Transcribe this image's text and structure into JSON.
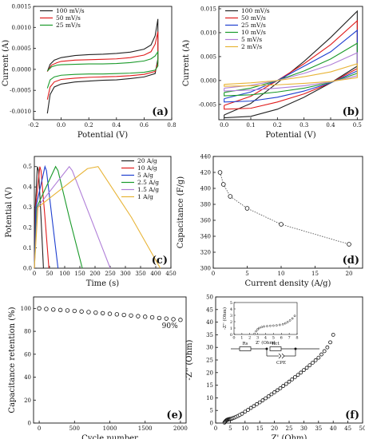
{
  "chart_data": [
    {
      "panel": "(a)",
      "type": "line",
      "xlabel": "Potential (V)",
      "ylabel": "Current (A)",
      "xlim": [
        -0.2,
        0.8
      ],
      "ylim": [
        -0.0012,
        0.0015
      ],
      "xticks": [
        "-0.2",
        "0.0",
        "0.2",
        "0.4",
        "0.6",
        "0.8"
      ],
      "yticks": [
        "-0.0010",
        "-0.0005",
        "0.0000",
        "0.0005",
        "0.0010",
        "0.0015"
      ],
      "legend_position": "top-left",
      "series": [
        {
          "name": "100 mV/s",
          "color": "#222222",
          "x": [
            -0.1,
            -0.08,
            -0.05,
            0.0,
            0.1,
            0.2,
            0.3,
            0.4,
            0.5,
            0.6,
            0.65,
            0.68,
            0.7,
            0.7,
            0.68,
            0.6,
            0.5,
            0.4,
            0.3,
            0.2,
            0.1,
            0.0,
            -0.05,
            -0.08,
            -0.1
          ],
          "y": [
            -5e-05,
            0.00012,
            0.00022,
            0.00028,
            0.00033,
            0.00035,
            0.00036,
            0.00038,
            0.00041,
            0.00048,
            0.00058,
            0.0008,
            0.0012,
            0.00025,
            -0.0001,
            -0.00018,
            -0.00022,
            -0.00025,
            -0.00026,
            -0.00028,
            -0.0003,
            -0.00035,
            -0.00042,
            -0.0006,
            -0.00105
          ]
        },
        {
          "name": "50 mV/s",
          "color": "#e01b1b",
          "x": [
            -0.1,
            -0.07,
            -0.03,
            0.0,
            0.1,
            0.2,
            0.3,
            0.4,
            0.5,
            0.6,
            0.65,
            0.68,
            0.7,
            0.7,
            0.68,
            0.6,
            0.5,
            0.4,
            0.3,
            0.2,
            0.1,
            0.0,
            -0.05,
            -0.08,
            -0.1
          ],
          "y": [
            -5e-05,
            0.0001,
            0.00016,
            0.00019,
            0.00022,
            0.00023,
            0.00024,
            0.00025,
            0.00028,
            0.00034,
            0.00042,
            0.0006,
            0.0009,
            0.00015,
            -5e-05,
            -0.00012,
            -0.00015,
            -0.00017,
            -0.00018,
            -0.00019,
            -0.00021,
            -0.00024,
            -0.0003,
            -0.00042,
            -0.00072
          ]
        },
        {
          "name": "25 mV/s",
          "color": "#1a9a2a",
          "x": [
            -0.1,
            -0.07,
            -0.03,
            0.0,
            0.1,
            0.2,
            0.3,
            0.4,
            0.5,
            0.6,
            0.65,
            0.68,
            0.7,
            0.7,
            0.68,
            0.6,
            0.5,
            0.4,
            0.3,
            0.2,
            0.1,
            0.0,
            -0.05,
            -0.08,
            -0.1
          ],
          "y": [
            -4e-05,
            6e-05,
            0.0001,
            0.00011,
            0.00012,
            0.00013,
            0.00013,
            0.00014,
            0.00016,
            0.0002,
            0.00025,
            0.00032,
            0.00042,
            8e-05,
            -2e-05,
            -7e-05,
            -9e-05,
            -0.0001,
            -0.00011,
            -0.00011,
            -0.00012,
            -0.00014,
            -0.00018,
            -0.00025,
            -0.00045
          ]
        }
      ]
    },
    {
      "panel": "(b)",
      "type": "line",
      "xlabel": "Potential (V)",
      "ylabel": "Current (A)",
      "xlim": [
        -0.02,
        0.52
      ],
      "ylim": [
        -0.0082,
        0.0155
      ],
      "xticks": [
        "0.0",
        "0.1",
        "0.2",
        "0.3",
        "0.4",
        "0.5"
      ],
      "yticks": [
        "-0.005",
        "0.000",
        "0.005",
        "0.010",
        "0.015"
      ],
      "legend_position": "top-left",
      "series": [
        {
          "name": "100 mV/s",
          "color": "#222222",
          "x": [
            0.0,
            0.1,
            0.2,
            0.3,
            0.4,
            0.5,
            0.5,
            0.4,
            0.3,
            0.2,
            0.1,
            0.0,
            0.0
          ],
          "y": [
            -0.0072,
            -0.0048,
            -0.0005,
            0.004,
            0.009,
            0.0145,
            0.003,
            -0.0005,
            -0.0035,
            -0.006,
            -0.0075,
            -0.0078,
            -0.0072
          ]
        },
        {
          "name": "50 mV/s",
          "color": "#e01b1b",
          "x": [
            0.0,
            0.1,
            0.2,
            0.3,
            0.4,
            0.5,
            0.5,
            0.4,
            0.3,
            0.2,
            0.1,
            0.0,
            0.0
          ],
          "y": [
            -0.0052,
            -0.0033,
            0.0,
            0.0035,
            0.0075,
            0.0125,
            0.0025,
            -0.0005,
            -0.0028,
            -0.0045,
            -0.0058,
            -0.006,
            -0.0052
          ]
        },
        {
          "name": "25 mV/s",
          "color": "#1e3fd0",
          "x": [
            0.0,
            0.1,
            0.2,
            0.3,
            0.4,
            0.5,
            0.5,
            0.4,
            0.3,
            0.2,
            0.1,
            0.0,
            0.0
          ],
          "y": [
            -0.0038,
            -0.0024,
            0.0,
            0.003,
            0.006,
            0.0105,
            0.002,
            -0.0005,
            -0.0022,
            -0.0035,
            -0.0043,
            -0.0045,
            -0.0038
          ]
        },
        {
          "name": "10 mV/s",
          "color": "#1a9a2a",
          "x": [
            0.0,
            0.1,
            0.2,
            0.3,
            0.4,
            0.5,
            0.5,
            0.4,
            0.3,
            0.2,
            0.1,
            0.0,
            0.0
          ],
          "y": [
            -0.0025,
            -0.0016,
            0.0,
            0.002,
            0.0045,
            0.0078,
            0.0015,
            -0.0004,
            -0.0016,
            -0.0024,
            -0.003,
            -0.0032,
            -0.0025
          ]
        },
        {
          "name": "5 mV/s",
          "color": "#b07fd8",
          "x": [
            0.0,
            0.1,
            0.2,
            0.3,
            0.4,
            0.5,
            0.5,
            0.4,
            0.3,
            0.2,
            0.1,
            0.0,
            0.0
          ],
          "y": [
            -0.0016,
            -0.001,
            0.0,
            0.0015,
            0.0033,
            0.0058,
            0.001,
            -0.0003,
            -0.0011,
            -0.0016,
            -0.002,
            -0.0022,
            -0.0016
          ]
        },
        {
          "name": "2 mV/s",
          "color": "#e8b437",
          "x": [
            0.0,
            0.1,
            0.2,
            0.3,
            0.4,
            0.5,
            0.5,
            0.4,
            0.3,
            0.2,
            0.1,
            0.0,
            0.0
          ],
          "y": [
            -0.0008,
            -0.0005,
            0.0,
            0.0008,
            0.0018,
            0.0035,
            0.0006,
            -0.0002,
            -0.0006,
            -0.0009,
            -0.0011,
            -0.0012,
            -0.0008
          ]
        }
      ]
    },
    {
      "panel": "(c)",
      "type": "line",
      "xlabel": "Time (s)",
      "ylabel": "Potential (V)",
      "xlim": [
        0,
        450
      ],
      "ylim": [
        0,
        0.55
      ],
      "xticks": [
        "0",
        "50",
        "100",
        "150",
        "200",
        "250",
        "300",
        "350",
        "400",
        "450"
      ],
      "yticks": [
        "0.0",
        "0.1",
        "0.2",
        "0.3",
        "0.4",
        "0.5"
      ],
      "legend_position": "top-right",
      "series": [
        {
          "name": "20 A/g",
          "color": "#222222",
          "x": [
            0,
            3,
            10,
            14,
            22,
            30
          ],
          "y": [
            0,
            0.3,
            0.5,
            0.48,
            0.25,
            0
          ]
        },
        {
          "name": "10 A/g",
          "color": "#e01b1b",
          "x": [
            0,
            4,
            18,
            22,
            35,
            48
          ],
          "y": [
            0,
            0.3,
            0.5,
            0.48,
            0.25,
            0
          ]
        },
        {
          "name": "5 A/g",
          "color": "#1e3fd0",
          "x": [
            0,
            5,
            35,
            40,
            58,
            78
          ],
          "y": [
            0,
            0.3,
            0.5,
            0.48,
            0.25,
            0
          ]
        },
        {
          "name": "2.5 A/g",
          "color": "#1a9a2a",
          "x": [
            0,
            8,
            70,
            78,
            115,
            158
          ],
          "y": [
            0,
            0.3,
            0.5,
            0.48,
            0.25,
            0
          ]
        },
        {
          "name": "1.5 A/g",
          "color": "#b07fd8",
          "x": [
            0,
            10,
            115,
            125,
            185,
            250
          ],
          "y": [
            0,
            0.3,
            0.5,
            0.48,
            0.25,
            0
          ]
        },
        {
          "name": "1 A/g",
          "color": "#e8b437",
          "x": [
            0,
            12,
            175,
            210,
            320,
            415
          ],
          "y": [
            0,
            0.3,
            0.49,
            0.5,
            0.25,
            0
          ]
        }
      ]
    },
    {
      "panel": "(d)",
      "type": "scatter",
      "xlabel": "Current density (A/g)",
      "ylabel": "Capacitance (F/g)",
      "xlim": [
        0,
        22
      ],
      "ylim": [
        300,
        440
      ],
      "xticks": [
        "0",
        "5",
        "10",
        "15",
        "20"
      ],
      "yticks": [
        "300",
        "320",
        "340",
        "360",
        "380",
        "400",
        "420",
        "440"
      ],
      "x": [
        1,
        1.5,
        2.5,
        5,
        10,
        20
      ],
      "y": [
        420,
        405,
        390,
        375,
        355,
        330
      ]
    },
    {
      "panel": "(e)",
      "type": "scatter",
      "xlabel": "Cycle number",
      "ylabel": "Capacitance retention (%)",
      "xlim": [
        -80,
        2080
      ],
      "ylim": [
        0,
        110
      ],
      "xticks": [
        "0",
        "500",
        "1000",
        "1500",
        "2000"
      ],
      "yticks": [
        "0",
        "20",
        "40",
        "60",
        "80",
        "100"
      ],
      "annotation": "90%",
      "x": [
        0,
        100,
        200,
        300,
        400,
        500,
        600,
        700,
        800,
        900,
        1000,
        1100,
        1200,
        1300,
        1400,
        1500,
        1600,
        1700,
        1800,
        1900,
        2000
      ],
      "y": [
        100,
        99.5,
        99,
        98.6,
        98.2,
        97.8,
        97.3,
        96.8,
        96.3,
        95.8,
        95.3,
        94.8,
        94.3,
        93.8,
        93.2,
        92.7,
        92.2,
        91.6,
        91.1,
        90.5,
        90
      ]
    },
    {
      "panel": "(f)",
      "type": "scatter",
      "xlabel": "Z' (Ohm)",
      "ylabel": "-Z'' (Ohm)",
      "xlim": [
        0,
        50
      ],
      "ylim": [
        0,
        50
      ],
      "xticks": [
        "0",
        "5",
        "10",
        "15",
        "20",
        "25",
        "30",
        "35",
        "40",
        "45",
        "50"
      ],
      "yticks": [
        "0",
        "5",
        "10",
        "15",
        "20",
        "25",
        "30",
        "35",
        "40",
        "45",
        "50"
      ],
      "x": [
        3.0,
        3.2,
        3.4,
        3.6,
        3.8,
        4.0,
        4.2,
        4.4,
        4.6,
        4.8,
        5.0,
        5.3,
        5.6,
        6.0,
        6.5,
        7.0,
        7.6,
        8.2,
        9.0,
        10.0,
        11.0,
        12.0,
        13.0,
        14.0,
        15.0,
        16.0,
        17.0,
        18.0,
        19.0,
        20.0,
        21.0,
        22.0,
        23.0,
        24.0,
        25.0,
        26.0,
        27.0,
        28.0,
        29.0,
        30.0,
        31.0,
        32.0,
        33.0,
        34.0,
        35.0,
        36.0,
        37.0,
        38.0,
        39.0,
        40.0
      ],
      "y": [
        0.2,
        0.5,
        0.8,
        1.0,
        1.2,
        1.3,
        1.4,
        1.5,
        1.5,
        1.6,
        1.6,
        1.7,
        1.8,
        2.0,
        2.2,
        2.5,
        2.8,
        3.2,
        3.7,
        4.5,
        5.2,
        6.0,
        6.7,
        7.5,
        8.2,
        9.0,
        9.8,
        10.6,
        11.4,
        12.2,
        13.0,
        13.8,
        14.7,
        15.5,
        16.4,
        17.3,
        18.2,
        19.1,
        20.0,
        21.0,
        21.9,
        22.9,
        23.9,
        24.9,
        25.9,
        27.2,
        28.5,
        30.0,
        32.0,
        35.0
      ],
      "inset": {
        "xlabel": "Z' (Ohm)",
        "ylabel": "-Z'' (Ohm)",
        "xlim": [
          0,
          8
        ],
        "ylim": [
          0,
          5
        ],
        "xticks": [
          "0",
          "1",
          "2",
          "3",
          "4",
          "5",
          "6",
          "7",
          "8"
        ],
        "yticks": [
          "0",
          "1",
          "2",
          "3",
          "4",
          "5"
        ],
        "x": [
          2.6,
          2.8,
          3.0,
          3.2,
          3.5,
          3.8,
          4.2,
          4.6,
          5.0,
          5.4,
          5.8,
          6.2,
          6.5,
          6.8,
          7.1,
          7.4,
          7.7
        ],
        "y": [
          0.1,
          0.5,
          0.8,
          1.0,
          1.15,
          1.25,
          1.3,
          1.35,
          1.38,
          1.42,
          1.5,
          1.6,
          1.75,
          1.95,
          2.2,
          2.5,
          2.9
        ]
      },
      "circuit": {
        "rs": "Rs",
        "rct": "Rct",
        "cpe": "CPE"
      }
    }
  ]
}
